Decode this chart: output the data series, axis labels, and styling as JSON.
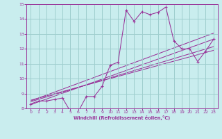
{
  "title": "",
  "xlabel": "Windchill (Refroidissement éolien,°C)",
  "xlim": [
    -0.5,
    23.5
  ],
  "ylim": [
    8,
    15
  ],
  "yticks": [
    8,
    9,
    10,
    11,
    12,
    13,
    14,
    15
  ],
  "xticks": [
    0,
    1,
    2,
    3,
    4,
    5,
    6,
    7,
    8,
    9,
    10,
    11,
    12,
    13,
    14,
    15,
    16,
    17,
    18,
    19,
    20,
    21,
    22,
    23
  ],
  "bg_color": "#c9edee",
  "line_color": "#993399",
  "grid_color": "#9ecece",
  "data_x": [
    0,
    1,
    2,
    3,
    4,
    5,
    6,
    7,
    8,
    9,
    10,
    11,
    12,
    13,
    14,
    15,
    16,
    17,
    18,
    19,
    20,
    21,
    22,
    23
  ],
  "data_y": [
    8.3,
    8.5,
    8.5,
    8.6,
    8.7,
    7.8,
    7.8,
    8.8,
    8.8,
    9.5,
    10.9,
    11.1,
    14.6,
    13.85,
    14.5,
    14.3,
    14.45,
    14.8,
    12.55,
    12.0,
    12.0,
    11.15,
    11.85,
    12.65
  ],
  "reg_lines": [
    [
      [
        0,
        23
      ],
      [
        8.25,
        12.65
      ]
    ],
    [
      [
        0,
        23
      ],
      [
        8.45,
        12.15
      ]
    ],
    [
      [
        0,
        23
      ],
      [
        8.55,
        11.9
      ]
    ],
    [
      [
        0,
        23
      ],
      [
        8.5,
        13.05
      ]
    ]
  ]
}
